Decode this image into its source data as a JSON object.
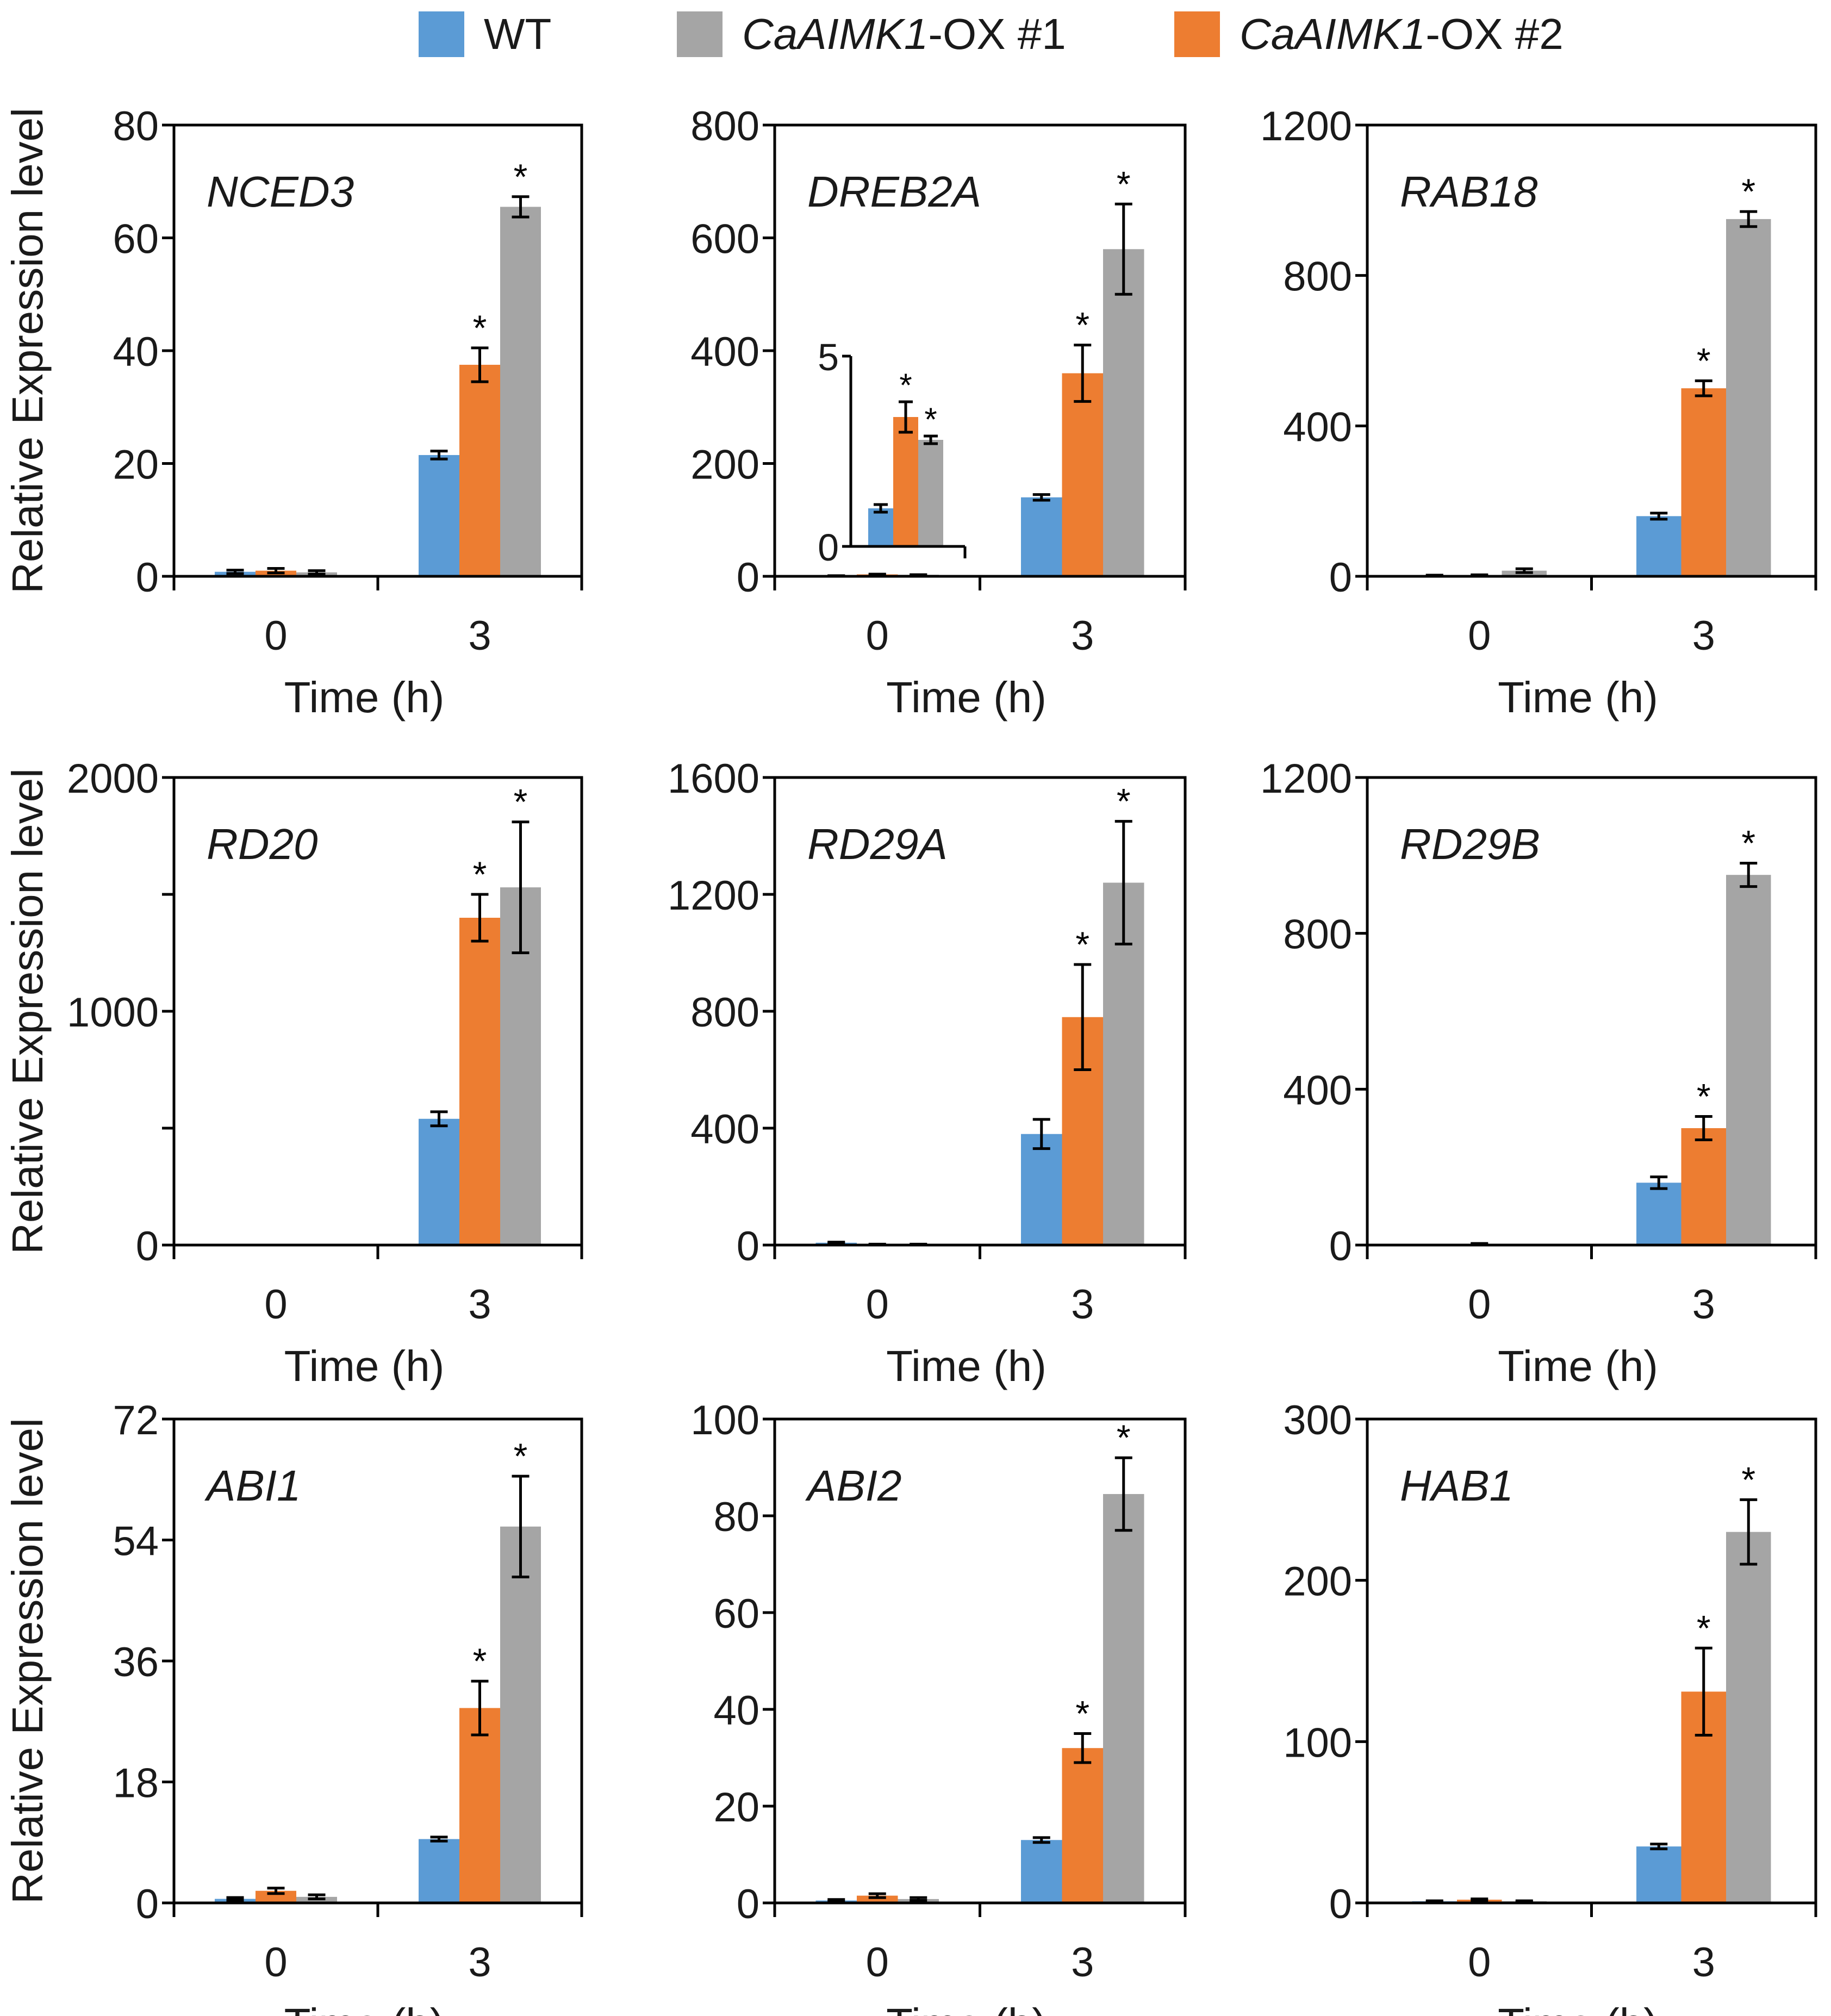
{
  "colors": {
    "WT": "#5b9bd5",
    "OX1": "#a5a5a5",
    "OX2": "#ed7d31",
    "axis": "#000000"
  },
  "legend": {
    "items": [
      {
        "key": "WT",
        "italic": "",
        "suffix": "WT"
      },
      {
        "key": "OX1",
        "italic": "CaAIMK1",
        "suffix": "-OX #1"
      },
      {
        "key": "OX2",
        "italic": "CaAIMK1",
        "suffix": "-OX #2"
      }
    ]
  },
  "chart_data": [
    {
      "type": "bar",
      "title": "NCED3",
      "categories": [
        "0",
        "3"
      ],
      "xlabel": "Time (h)",
      "ylabel": "Relative Expression level",
      "ylim": [
        0,
        80
      ],
      "yticks": [
        "0",
        "20",
        "40",
        "60",
        "80"
      ],
      "series": [
        {
          "name": "WT",
          "values": [
            0.8,
            21.5
          ],
          "errors": [
            0.3,
            0.7
          ],
          "sig": [
            false,
            false
          ]
        },
        {
          "name": "CaAIMK1-OX #2",
          "values": [
            1.0,
            37.5
          ],
          "errors": [
            0.4,
            3.0
          ],
          "sig": [
            false,
            true
          ]
        },
        {
          "name": "CaAIMK1-OX #1",
          "values": [
            0.7,
            65.5
          ],
          "errors": [
            0.3,
            1.8
          ],
          "sig": [
            false,
            true
          ]
        }
      ]
    },
    {
      "type": "bar",
      "title": "DREB2A",
      "categories": [
        "0",
        "3"
      ],
      "xlabel": "Time (h)",
      "ylabel": "",
      "ylim": [
        0,
        800
      ],
      "yticks": [
        "0",
        "200",
        "400",
        "600",
        "800"
      ],
      "series": [
        {
          "name": "WT",
          "values": [
            1.0,
            140
          ],
          "errors": [
            0.1,
            5
          ],
          "sig": [
            false,
            false
          ]
        },
        {
          "name": "CaAIMK1-OX #2",
          "values": [
            3.4,
            360
          ],
          "errors": [
            0.4,
            50
          ],
          "sig": [
            true,
            true
          ]
        },
        {
          "name": "CaAIMK1-OX #1",
          "values": [
            2.8,
            580
          ],
          "errors": [
            0.1,
            80
          ],
          "sig": [
            true,
            true
          ]
        }
      ],
      "inset": {
        "ylim": [
          0,
          5
        ],
        "yticks": [
          "0",
          "5"
        ],
        "values": [
          1.0,
          3.4,
          2.8
        ],
        "errors": [
          0.1,
          0.4,
          0.1
        ],
        "sig": [
          false,
          true,
          true
        ]
      }
    },
    {
      "type": "bar",
      "title": "RAB18",
      "categories": [
        "0",
        "3"
      ],
      "xlabel": "Time (h)",
      "ylabel": "",
      "ylim": [
        0,
        1200
      ],
      "yticks": [
        "0",
        "400",
        "800",
        "1200"
      ],
      "series": [
        {
          "name": "WT",
          "values": [
            2,
            160
          ],
          "errors": [
            1,
            8
          ],
          "sig": [
            false,
            false
          ]
        },
        {
          "name": "CaAIMK1-OX #2",
          "values": [
            3,
            500
          ],
          "errors": [
            1,
            20
          ],
          "sig": [
            false,
            true
          ]
        },
        {
          "name": "CaAIMK1-OX #1",
          "values": [
            15,
            950
          ],
          "errors": [
            5,
            20
          ],
          "sig": [
            false,
            true
          ]
        }
      ]
    },
    {
      "type": "bar",
      "title": "RD20",
      "categories": [
        "0",
        "3"
      ],
      "xlabel": "Time (h)",
      "ylabel": "Relative Expression level",
      "ylim": [
        0,
        2000
      ],
      "yticks": [
        "0",
        "",
        "1000",
        "",
        "2000"
      ],
      "series": [
        {
          "name": "WT",
          "values": [
            0,
            540
          ],
          "errors": [
            0,
            30
          ],
          "sig": [
            false,
            false
          ]
        },
        {
          "name": "CaAIMK1-OX #2",
          "values": [
            0,
            1400
          ],
          "errors": [
            0,
            100
          ],
          "sig": [
            false,
            true
          ]
        },
        {
          "name": "CaAIMK1-OX #1",
          "values": [
            0,
            1530
          ],
          "errors": [
            0,
            280
          ],
          "sig": [
            false,
            true
          ]
        }
      ]
    },
    {
      "type": "bar",
      "title": "RD29A",
      "categories": [
        "0",
        "3"
      ],
      "xlabel": "Time (h)",
      "ylabel": "",
      "ylim": [
        0,
        1600
      ],
      "yticks": [
        "0",
        "400",
        "800",
        "1200",
        "1600"
      ],
      "series": [
        {
          "name": "WT",
          "values": [
            8,
            380
          ],
          "errors": [
            2,
            50
          ],
          "sig": [
            false,
            false
          ]
        },
        {
          "name": "CaAIMK1-OX #2",
          "values": [
            2,
            780
          ],
          "errors": [
            1,
            180
          ],
          "sig": [
            false,
            true
          ]
        },
        {
          "name": "CaAIMK1-OX #1",
          "values": [
            2,
            1240
          ],
          "errors": [
            1,
            210
          ],
          "sig": [
            false,
            true
          ]
        }
      ]
    },
    {
      "type": "bar",
      "title": "RD29B",
      "categories": [
        "0",
        "3"
      ],
      "xlabel": "Time (h)",
      "ylabel": "",
      "ylim": [
        0,
        1200
      ],
      "yticks": [
        "0",
        "400",
        "800",
        "1200"
      ],
      "series": [
        {
          "name": "WT",
          "values": [
            0,
            160
          ],
          "errors": [
            0,
            15
          ],
          "sig": [
            false,
            false
          ]
        },
        {
          "name": "CaAIMK1-OX #2",
          "values": [
            3,
            300
          ],
          "errors": [
            1,
            30
          ],
          "sig": [
            false,
            true
          ]
        },
        {
          "name": "CaAIMK1-OX #1",
          "values": [
            0,
            950
          ],
          "errors": [
            0,
            30
          ],
          "sig": [
            false,
            true
          ]
        }
      ]
    },
    {
      "type": "bar",
      "title": "ABI1",
      "categories": [
        "0",
        "3"
      ],
      "xlabel": "Time (h)",
      "ylabel": "Relative Expression level",
      "ylim": [
        0,
        72
      ],
      "yticks": [
        "0",
        "18",
        "36",
        "54",
        "72"
      ],
      "series": [
        {
          "name": "WT",
          "values": [
            0.6,
            9.5
          ],
          "errors": [
            0.2,
            0.3
          ],
          "sig": [
            false,
            false
          ]
        },
        {
          "name": "CaAIMK1-OX #2",
          "values": [
            1.8,
            29
          ],
          "errors": [
            0.4,
            4
          ],
          "sig": [
            false,
            true
          ]
        },
        {
          "name": "CaAIMK1-OX #1",
          "values": [
            0.9,
            56
          ],
          "errors": [
            0.3,
            7.5
          ],
          "sig": [
            false,
            true
          ]
        }
      ]
    },
    {
      "type": "bar",
      "title": "ABI2",
      "categories": [
        "0",
        "3"
      ],
      "xlabel": "Time (h)",
      "ylabel": "",
      "ylim": [
        0,
        100
      ],
      "yticks": [
        "0",
        "20",
        "40",
        "60",
        "80",
        "100"
      ],
      "series": [
        {
          "name": "WT",
          "values": [
            0.5,
            13
          ],
          "errors": [
            0.2,
            0.5
          ],
          "sig": [
            false,
            false
          ]
        },
        {
          "name": "CaAIMK1-OX #2",
          "values": [
            1.5,
            32
          ],
          "errors": [
            0.4,
            3
          ],
          "sig": [
            false,
            true
          ]
        },
        {
          "name": "CaAIMK1-OX #1",
          "values": [
            0.8,
            84.5
          ],
          "errors": [
            0.3,
            7.5
          ],
          "sig": [
            false,
            true
          ]
        }
      ]
    },
    {
      "type": "bar",
      "title": "HAB1",
      "categories": [
        "0",
        "3"
      ],
      "xlabel": "Time (h)",
      "ylabel": "",
      "ylim": [
        0,
        300
      ],
      "yticks": [
        "0",
        "100",
        "200",
        "300"
      ],
      "series": [
        {
          "name": "WT",
          "values": [
            1,
            35
          ],
          "errors": [
            0.3,
            1.5
          ],
          "sig": [
            false,
            false
          ]
        },
        {
          "name": "CaAIMK1-OX #2",
          "values": [
            2,
            131
          ],
          "errors": [
            0.5,
            27
          ],
          "sig": [
            false,
            true
          ]
        },
        {
          "name": "CaAIMK1-OX #1",
          "values": [
            1,
            230
          ],
          "errors": [
            0.3,
            20
          ],
          "sig": [
            false,
            true
          ]
        }
      ]
    }
  ]
}
